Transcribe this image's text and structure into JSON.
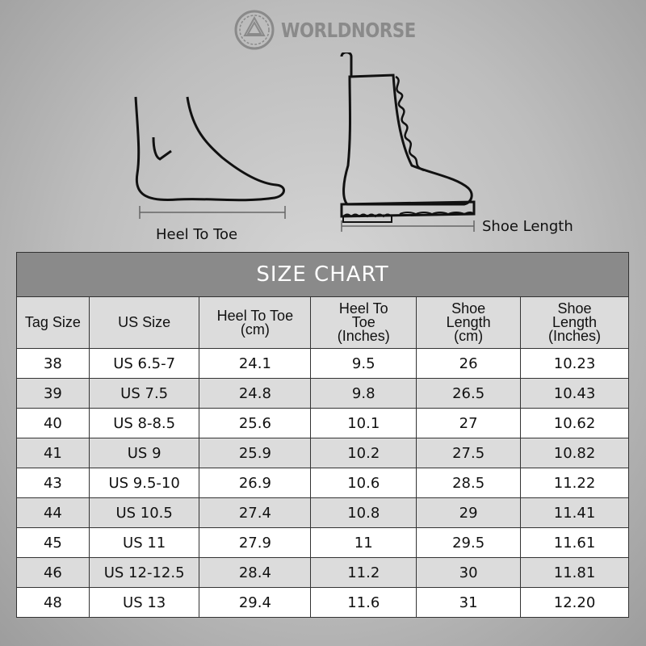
{
  "logo": {
    "text": "WORLDNORSE"
  },
  "illustrations": {
    "foot_caption": "Heel To Toe",
    "boot_caption": "Shoe Length"
  },
  "table": {
    "title": "SIZE CHART",
    "headers": [
      "Tag Size",
      "US Size",
      "Heel To Toe (cm)",
      "Heel To Toe (Inches)",
      "Shoe Length (cm)",
      "Shoe Length (Inches)"
    ],
    "rows": [
      [
        "38",
        "US 6.5-7",
        "24.1",
        "9.5",
        "26",
        "10.23"
      ],
      [
        "39",
        "US 7.5",
        "24.8",
        "9.8",
        "26.5",
        "10.43"
      ],
      [
        "40",
        "US 8-8.5",
        "25.6",
        "10.1",
        "27",
        "10.62"
      ],
      [
        "41",
        "US 9",
        "25.9",
        "10.2",
        "27.5",
        "10.82"
      ],
      [
        "43",
        "US 9.5-10",
        "26.9",
        "10.6",
        "28.5",
        "11.22"
      ],
      [
        "44",
        "US 10.5",
        "27.4",
        "10.8",
        "29",
        "11.41"
      ],
      [
        "45",
        "US 11",
        "27.9",
        "11",
        "29.5",
        "11.61"
      ],
      [
        "46",
        "US 12-12.5",
        "28.4",
        "11.2",
        "30",
        "11.81"
      ],
      [
        "48",
        "US 13",
        "29.4",
        "11.6",
        "31",
        "12.20"
      ]
    ]
  },
  "colors": {
    "title_band": "#8a8a8a",
    "alt_row": "#dcdcdc"
  }
}
